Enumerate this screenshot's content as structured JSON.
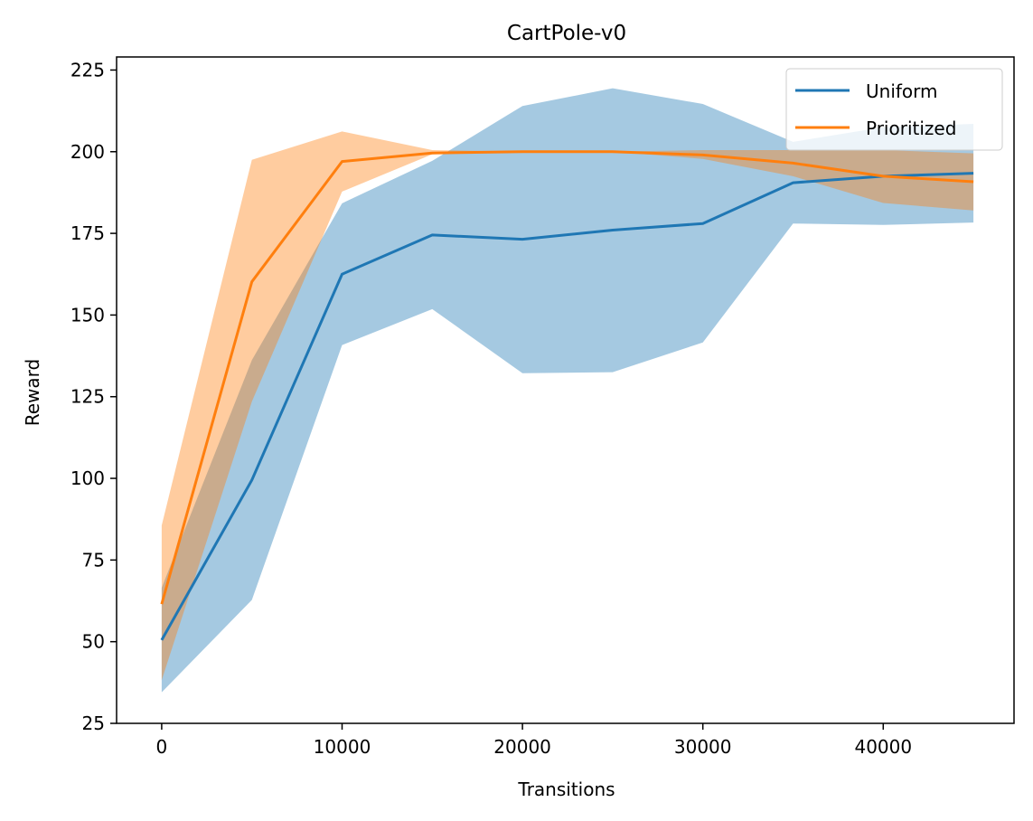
{
  "chart_data": {
    "type": "line",
    "title": "CartPole-v0",
    "xlabel": "Transitions",
    "ylabel": "Reward",
    "xlim": [
      -2500,
      47250
    ],
    "ylim": [
      25,
      229
    ],
    "xticks": [
      0,
      10000,
      20000,
      30000,
      40000
    ],
    "xtick_labels": [
      "0",
      "10000",
      "20000",
      "30000",
      "40000"
    ],
    "yticks": [
      25,
      50,
      75,
      100,
      125,
      150,
      175,
      200,
      225
    ],
    "ytick_labels": [
      "25",
      "50",
      "75",
      "100",
      "125",
      "150",
      "175",
      "200",
      "225"
    ],
    "legend_position": "top-right",
    "x": [
      0,
      5000,
      10000,
      15000,
      20000,
      25000,
      30000,
      35000,
      40000,
      45000
    ],
    "series": [
      {
        "name": "Uniform",
        "color": "#1f77b4",
        "fill_color": "#1f77b4",
        "values": [
          50.5,
          99.5,
          162.5,
          174.5,
          173.2,
          176.0,
          178.0,
          190.5,
          192.5,
          193.4
        ],
        "lower": [
          34.5,
          62.8,
          140.8,
          151.8,
          132.2,
          132.5,
          141.6,
          178.0,
          177.6,
          178.3
        ],
        "upper": [
          66.5,
          136.2,
          184.2,
          197.2,
          214.0,
          219.4,
          214.6,
          203.0,
          207.5,
          208.5
        ]
      },
      {
        "name": "Prioritized",
        "color": "#ff7f0e",
        "fill_color": "#ff7f0e",
        "values": [
          61.5,
          160.2,
          197.0,
          199.6,
          200.0,
          200.0,
          199.0,
          196.5,
          192.5,
          190.8
        ],
        "lower": [
          38.2,
          123.5,
          187.8,
          199.2,
          200.0,
          200.0,
          197.8,
          192.5,
          184.3,
          182.0
        ],
        "upper": [
          85.6,
          197.5,
          206.2,
          200.5,
          200.0,
          200.0,
          200.5,
          200.5,
          200.5,
          199.5
        ]
      }
    ]
  }
}
